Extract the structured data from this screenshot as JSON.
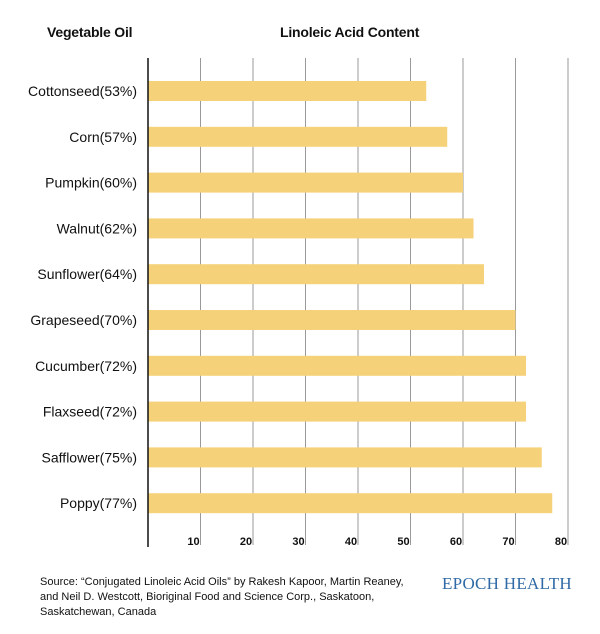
{
  "header": {
    "category_heading": "Vegetable Oil",
    "value_heading": "Linoleic Acid Content"
  },
  "colors": {
    "bar": "#f5d27a",
    "grid": "#999999",
    "axis": "#111111",
    "brand": "#2f6aa6"
  },
  "chart_data": {
    "type": "bar",
    "orientation": "horizontal",
    "title": "Linoleic Acid Content",
    "categories": [
      "Cottonseed(53%)",
      "Corn(57%)",
      "Pumpkin(60%)",
      "Walnut(62%)",
      "Sunflower(64%)",
      "Grapeseed(70%)",
      "Cucumber(72%)",
      "Flaxseed(72%)",
      "Safflower(75%)",
      "Poppy(77%)"
    ],
    "values": [
      53,
      57,
      60,
      62,
      64,
      70,
      72,
      72,
      75,
      77
    ],
    "xlim": [
      0,
      80
    ],
    "xticks": [
      10,
      20,
      30,
      40,
      50,
      60,
      70,
      80
    ],
    "grid": true
  },
  "footer": {
    "source": "Source: “Conjugated Linoleic Acid Oils” by Rakesh Kapoor, Martin Reaney, and Neil D. Westcott, Bioriginal Food and Science Corp., Saskatoon, Saskatchewan, Canada",
    "brand": "EPOCH HEALTH"
  }
}
